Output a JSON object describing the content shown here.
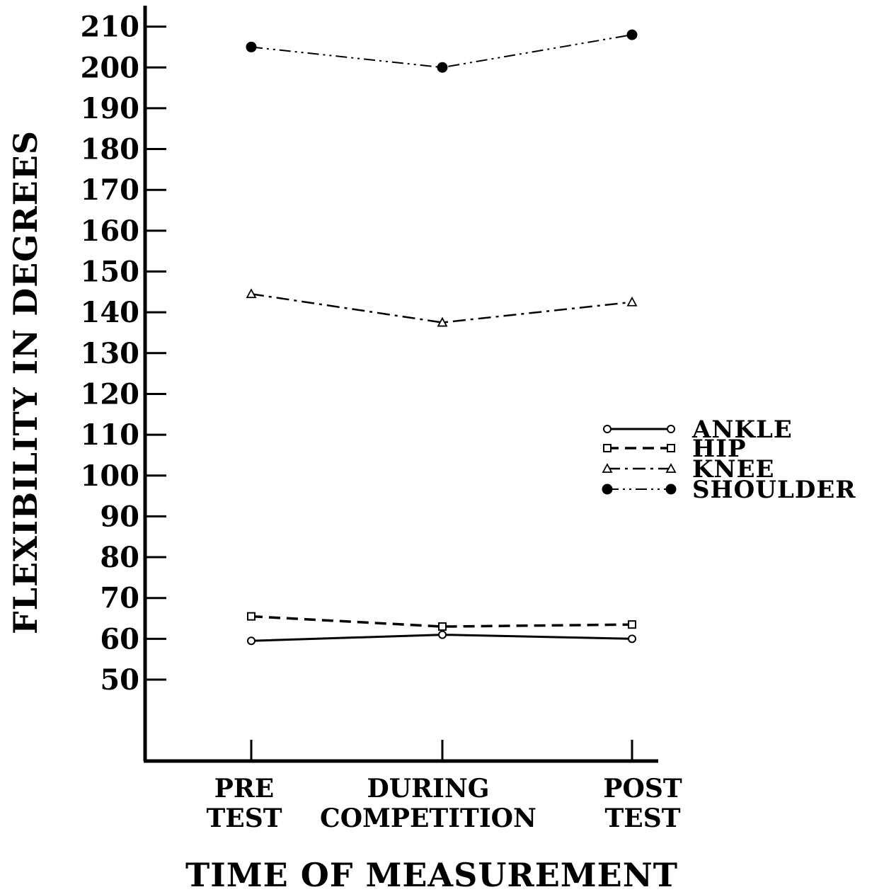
{
  "chart_data": {
    "type": "line",
    "title": "",
    "xlabel": "TIME OF MEASUREMENT",
    "ylabel": "FLEXIBILITY IN DEGREES",
    "categories": [
      [
        "PRE",
        "TEST"
      ],
      [
        "DURING",
        "COMPETITION"
      ],
      [
        "POST",
        "TEST"
      ]
    ],
    "yticks": [
      50,
      60,
      70,
      80,
      90,
      100,
      110,
      120,
      130,
      140,
      150,
      160,
      170,
      180,
      190,
      200,
      210
    ],
    "ylim": [
      32,
      212
    ],
    "grid": false,
    "legend_position": "right",
    "series": [
      {
        "name": "ANKLE",
        "values": [
          59.5,
          61,
          60
        ],
        "marker": "circle",
        "line": "solid"
      },
      {
        "name": "HIP",
        "values": [
          65.5,
          63,
          63.5
        ],
        "marker": "square",
        "line": "dashed"
      },
      {
        "name": "KNEE",
        "values": [
          144.5,
          137.5,
          142.5
        ],
        "marker": "triangle",
        "line": "dash-dot"
      },
      {
        "name": "SHOULDER",
        "values": [
          205,
          200,
          208
        ],
        "marker": "filled-circle",
        "line": "dash-dot-dot"
      }
    ]
  }
}
